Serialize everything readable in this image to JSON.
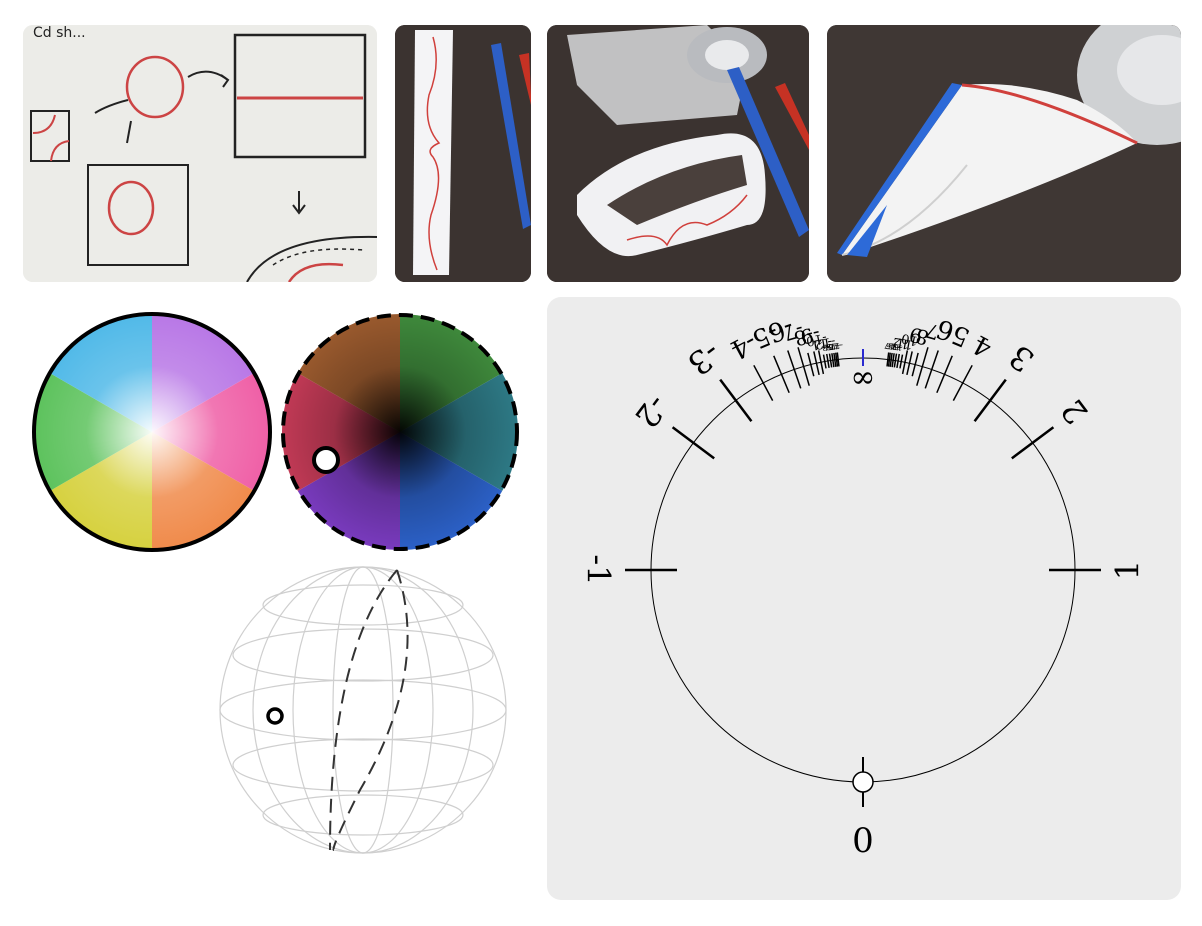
{
  "photos": [
    {
      "name": "hand-sketch",
      "note_text": "Cd sh..."
    },
    {
      "name": "paper-strip"
    },
    {
      "name": "paper-loop"
    },
    {
      "name": "paper-cone"
    }
  ],
  "dial": {
    "bottom_label": "0",
    "top_label": "∞",
    "right_labels": [
      "1",
      "2",
      "3",
      "4",
      "5",
      "6",
      "7",
      "8",
      "9",
      "10",
      "11",
      "12",
      "13",
      "14",
      "15",
      "16",
      "17"
    ],
    "left_labels": [
      "-1",
      "-2",
      "-3",
      "-4",
      "-5",
      "-6",
      "-7",
      "-8",
      "-9",
      "-10",
      "-11",
      "-12",
      "-13",
      "-14",
      "-15",
      "-16",
      "-17"
    ],
    "marker_color": "#2a2ad0"
  },
  "colors": {
    "panel_bg": "#ececec",
    "paper_line": "#d0403c",
    "pencil_blue": "#2d5fc6",
    "pencil_red": "#c63224"
  }
}
